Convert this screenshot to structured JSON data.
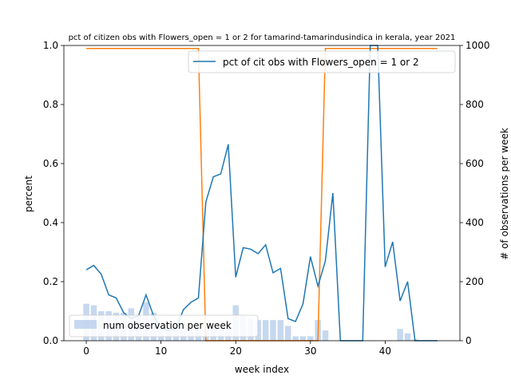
{
  "chart_data": {
    "type": "line",
    "title": "pct of citizen obs with Flowers_open = 1 or 2 for tamarind-tamarindusindica in kerala, year 2021",
    "xlabel": "week index",
    "ylabel": "percent",
    "y2label": "# of observations per week",
    "xlim": [
      -3,
      50
    ],
    "ylim": [
      0,
      1.0
    ],
    "y2lim": [
      0,
      1000
    ],
    "xticks": [
      0,
      10,
      20,
      30,
      40
    ],
    "yticks": [
      0.0,
      0.2,
      0.4,
      0.6,
      0.8,
      1.0
    ],
    "yticklabels": [
      "0.0",
      "0.2",
      "0.4",
      "0.6",
      "0.8",
      "1.0"
    ],
    "y2ticks": [
      0,
      200,
      400,
      600,
      800,
      1000
    ],
    "grid": false,
    "colors": {
      "pct": "#1f77b4",
      "step": "#ff7f0e",
      "bars": "#aec7e8"
    },
    "legend": [
      {
        "label": "pct of cit obs with Flowers_open = 1 or 2",
        "placement": "top-right"
      },
      {
        "label": "num observation per week",
        "placement": "bottom-left"
      }
    ],
    "series": [
      {
        "name": "pct of cit obs with Flowers_open = 1 or 2",
        "axis": "left",
        "kind": "line",
        "x": [
          0,
          1,
          2,
          3,
          4,
          5,
          6,
          7,
          8,
          9,
          10,
          11,
          12,
          13,
          14,
          15,
          16,
          17,
          18,
          19,
          20,
          21,
          22,
          23,
          24,
          25,
          26,
          27,
          28,
          29,
          30,
          31,
          32,
          33,
          34,
          35,
          36,
          37,
          38,
          39,
          40,
          41,
          42,
          43,
          44,
          45,
          46,
          47
        ],
        "values": [
          0.24,
          0.255,
          0.225,
          0.155,
          0.145,
          0.095,
          0.075,
          0.085,
          0.155,
          0.085,
          0.04,
          0.035,
          0.04,
          0.105,
          0.13,
          0.145,
          0.47,
          0.555,
          0.565,
          0.665,
          0.215,
          0.315,
          0.31,
          0.295,
          0.325,
          0.23,
          0.245,
          0.075,
          0.065,
          0.125,
          0.285,
          0.185,
          0.27,
          0.5,
          0.0,
          0.0,
          0.0,
          0.0,
          1.0,
          1.0,
          0.25,
          0.335,
          0.135,
          0.2,
          0.0,
          0.0,
          0.0,
          0.0
        ]
      },
      {
        "name": "",
        "axis": "right",
        "kind": "step",
        "x": [
          0,
          1,
          2,
          3,
          4,
          5,
          6,
          7,
          8,
          9,
          10,
          11,
          12,
          13,
          14,
          15,
          16,
          17,
          18,
          19,
          20,
          21,
          22,
          23,
          24,
          25,
          26,
          27,
          28,
          29,
          30,
          31,
          32,
          33,
          34,
          35,
          36,
          37,
          38,
          39,
          40,
          41,
          42,
          43,
          44,
          45,
          46,
          47
        ],
        "values": [
          990,
          990,
          990,
          990,
          990,
          990,
          990,
          990,
          990,
          990,
          990,
          990,
          990,
          990,
          990,
          990,
          0,
          0,
          0,
          0,
          0,
          0,
          0,
          0,
          0,
          0,
          0,
          0,
          0,
          0,
          0,
          0,
          990,
          990,
          990,
          990,
          990,
          990,
          990,
          990,
          990,
          990,
          990,
          990,
          990,
          990,
          990,
          990
        ]
      },
      {
        "name": "num observation per week",
        "axis": "right",
        "kind": "bar",
        "x": [
          0,
          1,
          2,
          3,
          4,
          5,
          6,
          7,
          8,
          9,
          10,
          11,
          12,
          13,
          14,
          15,
          16,
          17,
          18,
          19,
          20,
          21,
          22,
          23,
          24,
          25,
          26,
          27,
          28,
          29,
          30,
          31,
          32,
          33,
          34,
          35,
          36,
          37,
          38,
          39,
          40,
          41,
          42,
          43,
          44,
          45,
          46,
          47
        ],
        "values": [
          125,
          120,
          100,
          100,
          95,
          95,
          110,
          85,
          130,
          95,
          50,
          45,
          40,
          40,
          40,
          40,
          40,
          40,
          40,
          40,
          120,
          85,
          75,
          70,
          70,
          70,
          70,
          50,
          15,
          15,
          15,
          70,
          35,
          0,
          0,
          0,
          0,
          0,
          0,
          0,
          0,
          0,
          40,
          25,
          5,
          0,
          0,
          0
        ]
      }
    ]
  }
}
